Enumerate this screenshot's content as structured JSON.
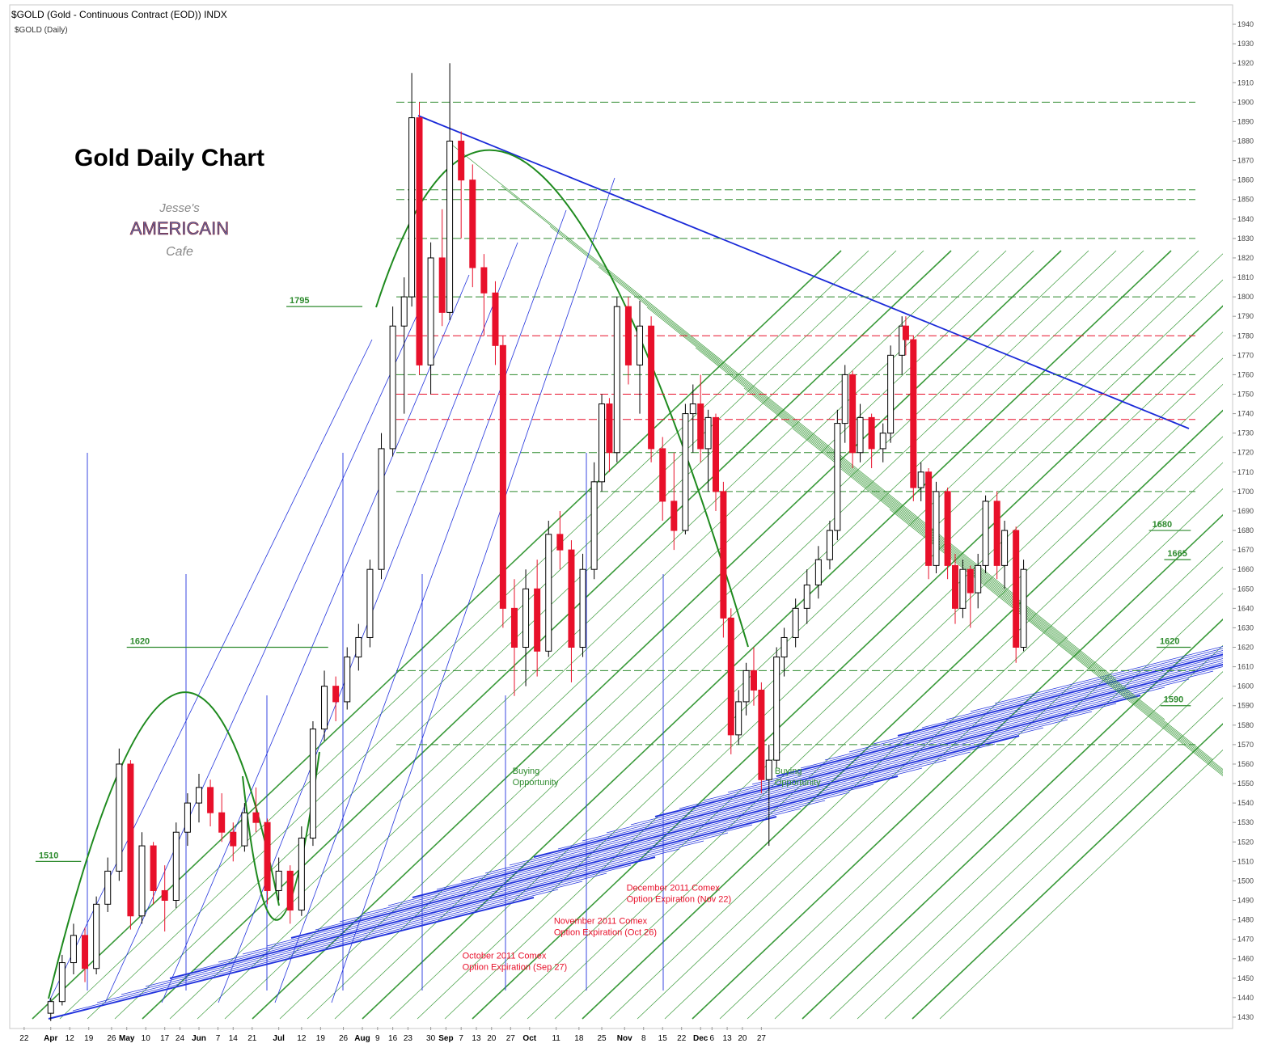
{
  "chart_data": {
    "type": "candlestick",
    "header": "$GOLD (Gold - Continuous Contract (EOD)) INDX",
    "subheader": "$GOLD (Daily)",
    "title": "Gold Daily Chart",
    "logo": [
      "Jesse's",
      "AMERICAIN",
      "Cafe"
    ],
    "up_color": "#000000",
    "down_color": "#e8102a",
    "xlim": [
      -3.8,
      318
    ],
    "ylim": [
      1425,
      1945
    ],
    "yticks": [
      1430,
      1440,
      1450,
      1460,
      1470,
      1480,
      1490,
      1500,
      1510,
      1520,
      1530,
      1540,
      1550,
      1560,
      1570,
      1580,
      1590,
      1600,
      1610,
      1620,
      1630,
      1640,
      1650,
      1660,
      1670,
      1680,
      1690,
      1700,
      1710,
      1720,
      1730,
      1740,
      1750,
      1760,
      1770,
      1780,
      1790,
      1800,
      1810,
      1820,
      1830,
      1840,
      1850,
      1860,
      1870,
      1880,
      1890,
      1900,
      1910,
      1920,
      1930,
      1940
    ],
    "xticks": [
      {
        "value": 0,
        "label": "22"
      },
      {
        "value": 7,
        "label": "Apr"
      },
      {
        "value": 12,
        "label": "12"
      },
      {
        "value": 17,
        "label": "19"
      },
      {
        "value": 23,
        "label": "26"
      },
      {
        "value": 27,
        "label": "May"
      },
      {
        "value": 32,
        "label": "10"
      },
      {
        "value": 37,
        "label": "17"
      },
      {
        "value": 41,
        "label": "24"
      },
      {
        "value": 46,
        "label": "Jun"
      },
      {
        "value": 51,
        "label": "7"
      },
      {
        "value": 55,
        "label": "14"
      },
      {
        "value": 60,
        "label": "21"
      },
      {
        "value": 67,
        "label": "Jul"
      },
      {
        "value": 73,
        "label": "12"
      },
      {
        "value": 78,
        "label": "19"
      },
      {
        "value": 84,
        "label": "26"
      },
      {
        "value": 89,
        "label": "Aug"
      },
      {
        "value": 93,
        "label": "9"
      },
      {
        "value": 97,
        "label": "16"
      },
      {
        "value": 101,
        "label": "23"
      },
      {
        "value": 107,
        "label": "30"
      },
      {
        "value": 111,
        "label": "Sep"
      },
      {
        "value": 115,
        "label": "7"
      },
      {
        "value": 119,
        "label": "13"
      },
      {
        "value": 123,
        "label": "20"
      },
      {
        "value": 128,
        "label": "27"
      },
      {
        "value": 133,
        "label": "Oct"
      },
      {
        "value": 140,
        "label": "11"
      },
      {
        "value": 146,
        "label": "18"
      },
      {
        "value": 152,
        "label": "25"
      },
      {
        "value": 158,
        "label": "Nov"
      },
      {
        "value": 163,
        "label": "8"
      },
      {
        "value": 168,
        "label": "15"
      },
      {
        "value": 173,
        "label": "22"
      },
      {
        "value": 178,
        "label": "Dec"
      },
      {
        "value": 181,
        "label": "6"
      },
      {
        "value": 185,
        "label": "13"
      },
      {
        "value": 189,
        "label": "20"
      },
      {
        "value": 194,
        "label": "27"
      }
    ],
    "candles": [
      [
        7,
        1432,
        1440,
        1428,
        1438
      ],
      [
        10,
        1438,
        1462,
        1436,
        1458
      ],
      [
        13,
        1458,
        1478,
        1452,
        1472
      ],
      [
        16,
        1472,
        1476,
        1448,
        1455
      ],
      [
        19,
        1455,
        1492,
        1452,
        1488
      ],
      [
        22,
        1488,
        1512,
        1484,
        1505
      ],
      [
        25,
        1505,
        1568,
        1500,
        1560
      ],
      [
        28,
        1560,
        1562,
        1475,
        1482
      ],
      [
        31,
        1482,
        1525,
        1478,
        1518
      ],
      [
        34,
        1518,
        1520,
        1488,
        1495
      ],
      [
        37,
        1495,
        1508,
        1474,
        1490
      ],
      [
        40,
        1490,
        1530,
        1486,
        1525
      ],
      [
        43,
        1525,
        1545,
        1518,
        1540
      ],
      [
        46,
        1540,
        1555,
        1530,
        1548
      ],
      [
        49,
        1548,
        1552,
        1528,
        1535
      ],
      [
        52,
        1535,
        1545,
        1520,
        1525
      ],
      [
        55,
        1525,
        1530,
        1510,
        1518
      ],
      [
        58,
        1518,
        1540,
        1515,
        1535
      ],
      [
        61,
        1535,
        1548,
        1525,
        1530
      ],
      [
        64,
        1530,
        1532,
        1488,
        1495
      ],
      [
        67,
        1495,
        1512,
        1490,
        1505
      ],
      [
        70,
        1505,
        1508,
        1478,
        1485
      ],
      [
        73,
        1485,
        1528,
        1482,
        1522
      ],
      [
        76,
        1522,
        1582,
        1518,
        1578
      ],
      [
        79,
        1578,
        1608,
        1572,
        1600
      ],
      [
        82,
        1600,
        1605,
        1582,
        1592
      ],
      [
        85,
        1592,
        1620,
        1588,
        1615
      ],
      [
        88,
        1615,
        1632,
        1608,
        1625
      ],
      [
        91,
        1625,
        1665,
        1620,
        1660
      ],
      [
        94,
        1660,
        1730,
        1655,
        1722
      ],
      [
        97,
        1722,
        1795,
        1718,
        1785
      ],
      [
        100,
        1785,
        1810,
        1740,
        1800
      ],
      [
        102,
        1800,
        1915,
        1795,
        1892
      ],
      [
        104,
        1892,
        1900,
        1760,
        1765
      ],
      [
        107,
        1765,
        1828,
        1750,
        1820
      ],
      [
        110,
        1820,
        1845,
        1785,
        1792
      ],
      [
        112,
        1792,
        1920,
        1788,
        1880
      ],
      [
        115,
        1880,
        1885,
        1830,
        1860
      ],
      [
        118,
        1860,
        1868,
        1805,
        1815
      ],
      [
        121,
        1815,
        1822,
        1780,
        1802
      ],
      [
        124,
        1802,
        1808,
        1765,
        1775
      ],
      [
        126,
        1775,
        1780,
        1630,
        1640
      ],
      [
        129,
        1640,
        1655,
        1595,
        1620
      ],
      [
        132,
        1620,
        1660,
        1600,
        1650
      ],
      [
        135,
        1650,
        1665,
        1605,
        1618
      ],
      [
        138,
        1618,
        1685,
        1615,
        1678
      ],
      [
        141,
        1678,
        1690,
        1660,
        1670
      ],
      [
        144,
        1670,
        1675,
        1602,
        1620
      ],
      [
        147,
        1620,
        1668,
        1615,
        1660
      ],
      [
        150,
        1660,
        1715,
        1655,
        1705
      ],
      [
        152,
        1705,
        1750,
        1700,
        1745
      ],
      [
        154,
        1745,
        1748,
        1710,
        1720
      ],
      [
        156,
        1720,
        1800,
        1715,
        1795
      ],
      [
        159,
        1795,
        1800,
        1755,
        1765
      ],
      [
        162,
        1765,
        1798,
        1740,
        1785
      ],
      [
        165,
        1785,
        1790,
        1715,
        1722
      ],
      [
        168,
        1722,
        1728,
        1685,
        1695
      ],
      [
        171,
        1695,
        1720,
        1670,
        1680
      ],
      [
        174,
        1680,
        1745,
        1678,
        1740
      ],
      [
        176,
        1740,
        1755,
        1720,
        1745
      ],
      [
        178,
        1745,
        1760,
        1715,
        1722
      ],
      [
        180,
        1722,
        1742,
        1700,
        1738
      ],
      [
        182,
        1738,
        1740,
        1690,
        1700
      ],
      [
        184,
        1700,
        1705,
        1625,
        1635
      ],
      [
        186,
        1635,
        1640,
        1565,
        1575
      ],
      [
        188,
        1575,
        1598,
        1570,
        1592
      ],
      [
        190,
        1592,
        1612,
        1585,
        1608
      ],
      [
        192,
        1608,
        1620,
        1590,
        1598
      ],
      [
        194,
        1598,
        1602,
        1545,
        1552
      ],
      [
        196,
        1552,
        1570,
        1518,
        1562
      ],
      [
        198,
        1562,
        1620,
        1558,
        1615
      ],
      [
        200,
        1615,
        1630,
        1605,
        1625
      ],
      [
        203,
        1625,
        1645,
        1620,
        1640
      ],
      [
        206,
        1640,
        1660,
        1632,
        1652
      ],
      [
        209,
        1652,
        1672,
        1645,
        1665
      ],
      [
        212,
        1665,
        1685,
        1660,
        1680
      ],
      [
        214,
        1680,
        1742,
        1675,
        1735
      ],
      [
        216,
        1735,
        1765,
        1725,
        1760
      ],
      [
        218,
        1760,
        1762,
        1712,
        1720
      ],
      [
        220,
        1720,
        1745,
        1715,
        1738
      ],
      [
        223,
        1738,
        1740,
        1712,
        1722
      ],
      [
        226,
        1722,
        1735,
        1715,
        1730
      ],
      [
        228,
        1730,
        1775,
        1725,
        1770
      ],
      [
        231,
        1770,
        1790,
        1760,
        1785
      ],
      [
        232,
        1785,
        1790,
        1770,
        1778
      ],
      [
        234,
        1778,
        1780,
        1695,
        1702
      ],
      [
        236,
        1702,
        1715,
        1695,
        1710
      ],
      [
        238,
        1710,
        1712,
        1655,
        1662
      ],
      [
        240,
        1662,
        1705,
        1658,
        1700
      ],
      [
        243,
        1700,
        1702,
        1655,
        1662
      ],
      [
        245,
        1662,
        1668,
        1632,
        1640
      ],
      [
        247,
        1640,
        1665,
        1635,
        1660
      ],
      [
        249,
        1660,
        1662,
        1630,
        1648
      ],
      [
        251,
        1648,
        1668,
        1640,
        1662
      ],
      [
        253,
        1662,
        1698,
        1658,
        1695
      ],
      [
        256,
        1695,
        1700,
        1655,
        1662
      ],
      [
        258,
        1662,
        1685,
        1650,
        1680
      ],
      [
        261,
        1680,
        1682,
        1612,
        1620
      ],
      [
        263,
        1620,
        1665,
        1618,
        1660
      ]
    ],
    "level_labels": [
      {
        "value": 1795,
        "from": 69,
        "to": 89
      },
      {
        "value": 1620,
        "from": 27,
        "to": 80
      },
      {
        "value": 1510,
        "from": 3,
        "to": 15
      },
      {
        "value": 1680,
        "from": 296,
        "to": 307
      },
      {
        "value": 1665,
        "from": 300,
        "to": 307
      },
      {
        "value": 1620,
        "from": 298,
        "to": 307
      },
      {
        "value": 1590,
        "from": 299,
        "to": 307
      }
    ],
    "annotations": [
      {
        "lines": [
          "Buying",
          "Opportunity"
        ],
        "day": 128.5,
        "price": 1555,
        "color": "#2e8b2e"
      },
      {
        "lines": [
          "Buying",
          "Opportunity"
        ],
        "day": 197.5,
        "price": 1555,
        "color": "#2e8b2e"
      },
      {
        "lines": [
          "October 2011 Comex",
          "Option Expiration (Sep 27)"
        ],
        "day": 115.3,
        "price": 1460,
        "color": "#e8102a"
      },
      {
        "lines": [
          "November 2011 Comex",
          "Option Expiration  (Oct 26)"
        ],
        "day": 139.4,
        "price": 1478,
        "color": "#e8102a"
      },
      {
        "lines": [
          "December 2011 Comex",
          "Option Expiration (Nov 22)"
        ],
        "day": 158.5,
        "price": 1495,
        "color": "#e8102a"
      }
    ]
  }
}
